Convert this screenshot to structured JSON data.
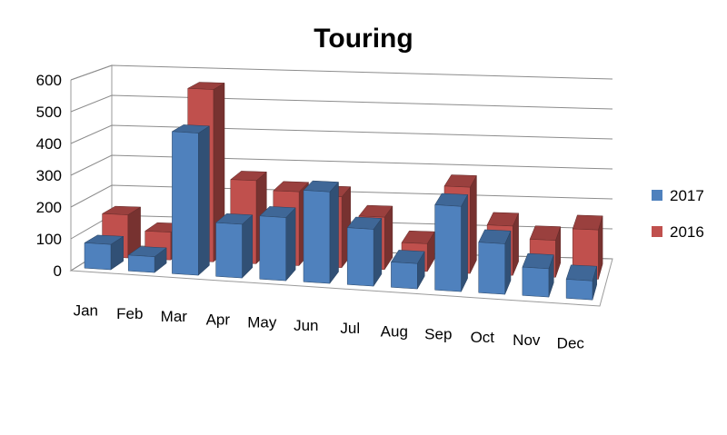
{
  "chart_data": {
    "type": "bar",
    "title": "Touring",
    "xlabel": "",
    "ylabel": "",
    "categories": [
      "Jan",
      "Feb",
      "Mar",
      "Apr",
      "May",
      "Jun",
      "Jul",
      "Aug",
      "Sep",
      "Oct",
      "Nov",
      "Dec"
    ],
    "series": [
      {
        "name": "2017",
        "color": "#4F81BD",
        "values": [
          80,
          50,
          450,
          170,
          200,
          290,
          180,
          80,
          270,
          160,
          90,
          60
        ]
      },
      {
        "name": "2016",
        "color": "#C0504D",
        "values": [
          140,
          90,
          560,
          270,
          240,
          230,
          170,
          90,
          280,
          160,
          120,
          160
        ]
      }
    ],
    "yticks": [
      "0",
      "100",
      "200",
      "300",
      "400",
      "500",
      "600"
    ],
    "ylim": [
      0,
      600
    ],
    "grid": true,
    "legend_position": "right",
    "projection": "3d-perspective"
  }
}
